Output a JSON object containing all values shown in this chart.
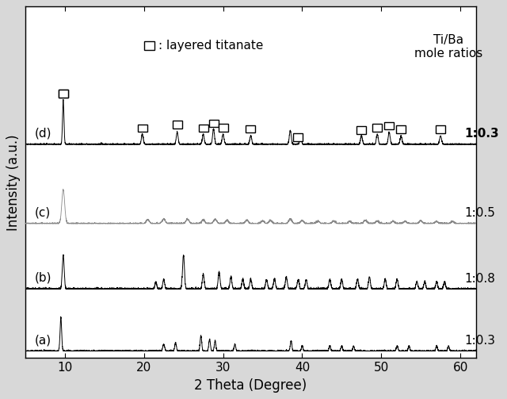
{
  "xlabel": "2 Theta (Degree)",
  "ylabel": "Intensity (a.u.)",
  "xlim": [
    5,
    62
  ],
  "background_color": "#d8d8d8",
  "plot_bg_color": "#ffffff",
  "colors_abcd": [
    "#000000",
    "#000000",
    "#888888",
    "#000000"
  ],
  "offsets": [
    0.0,
    0.18,
    0.37,
    0.6
  ],
  "scale_abcd": [
    0.1,
    0.1,
    0.1,
    0.13
  ],
  "legend_title": "Ti/Ba\nmole ratios",
  "square_positions_d": [
    9.8,
    19.8,
    24.2,
    27.5,
    28.8,
    30.0,
    33.5,
    39.5,
    47.5,
    49.5,
    51.0,
    52.5,
    57.5
  ],
  "xticks": [
    10,
    20,
    30,
    40,
    50,
    60
  ],
  "tick_fontsize": 11,
  "label_fontsize": 12,
  "annot_fontsize": 11
}
